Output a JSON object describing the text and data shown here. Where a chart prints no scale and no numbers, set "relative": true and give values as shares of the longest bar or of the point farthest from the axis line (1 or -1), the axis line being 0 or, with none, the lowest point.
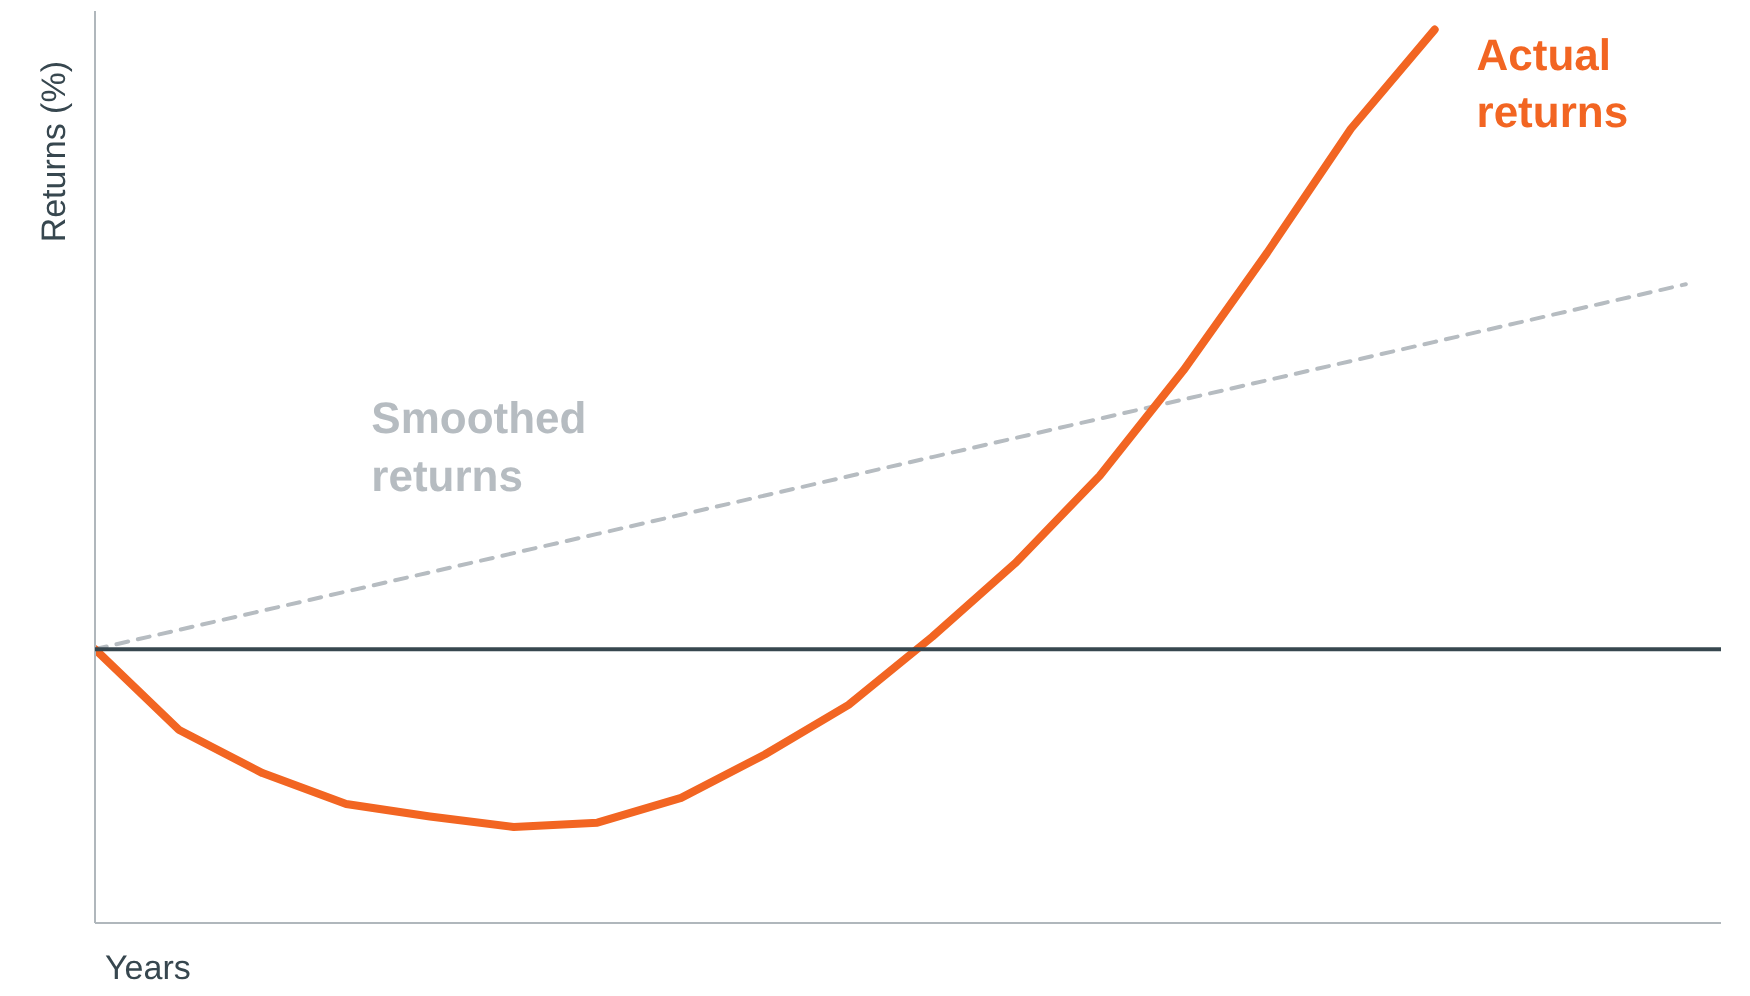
{
  "chart_data": {
    "type": "line",
    "xlabel": "Years",
    "ylabel": "Returns (%)",
    "relative": true,
    "categories": [
      null,
      null,
      null,
      null,
      null,
      null,
      null,
      null,
      null,
      null,
      null,
      null,
      null,
      null,
      null,
      null,
      null,
      null,
      null,
      null
    ],
    "series": [
      {
        "name": "Smoothed returns",
        "color": "#b6bcc1",
        "line_style": "dashed",
        "values": [
          0,
          0.031,
          0.062,
          0.093,
          0.124,
          0.155,
          0.186,
          0.217,
          0.248,
          0.279,
          0.31,
          0.341,
          0.372,
          0.403,
          0.434,
          0.465,
          0.496,
          0.527,
          0.558,
          0.589
        ]
      },
      {
        "name": "Actual returns",
        "color": "#f26522",
        "line_style": "solid",
        "values": [
          0,
          -0.13,
          -0.2,
          -0.25,
          -0.27,
          -0.287,
          -0.28,
          -0.24,
          -0.17,
          -0.09,
          0.02,
          0.14,
          0.28,
          0.45,
          0.64,
          0.84,
          1.0,
          null,
          null,
          null
        ]
      }
    ],
    "ref_lines": [
      {
        "axis": "y",
        "value": 0,
        "color": "#37474f"
      }
    ]
  }
}
